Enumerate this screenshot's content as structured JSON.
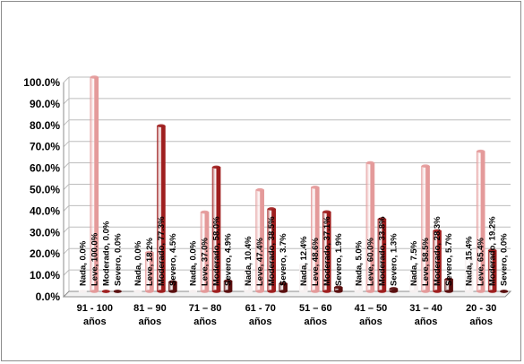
{
  "chart_data": {
    "type": "bar",
    "title": "",
    "xlabel": "",
    "ylabel": "",
    "ylim": [
      0,
      100
    ],
    "yticks": [
      "0.0%",
      "10.0%",
      "20.0%",
      "30.0%",
      "40.0%",
      "50.0%",
      "60.0%",
      "70.0%",
      "80.0%",
      "90.0%",
      "100.0%"
    ],
    "grid": true,
    "legend": "none",
    "categories": [
      [
        "91 - 100",
        "años"
      ],
      [
        "81 – 90",
        "años"
      ],
      [
        "71 – 80",
        "años"
      ],
      [
        "61 - 70",
        "años"
      ],
      [
        "51 – 60",
        "años"
      ],
      [
        "41 – 50",
        "años"
      ],
      [
        "31 – 40",
        "años"
      ],
      [
        "20 - 30",
        "años"
      ]
    ],
    "series": [
      {
        "key": "nada",
        "color": "#f6f0f0",
        "values": [
          0.0,
          0.0,
          0.0,
          10.4,
          12.4,
          5.0,
          7.5,
          15.4
        ],
        "labels": [
          "Nada, 0.0%",
          "Nada, 0.0%",
          "Nada, 0.0%",
          "Nada, 10.4%",
          "Nada, 12.4%",
          "Nada, 5.0%",
          "Nada, 7.5%",
          "Nada, 15.4%"
        ]
      },
      {
        "key": "leve",
        "color": "#e49a9a",
        "values": [
          100.0,
          18.2,
          37.0,
          47.4,
          48.6,
          60.0,
          58.5,
          65.4
        ],
        "labels": [
          "Leve, 100.0%",
          "Leve, 18.2%",
          "Leve, 37.0%",
          "Leve, 47.4%",
          "Leve, 48.6%",
          "Leve, 60.0%",
          "Leve, 58.5%",
          "Leve, 65.4%"
        ]
      },
      {
        "key": "moderado",
        "color": "#9e1e1e",
        "values": [
          0.0,
          77.3,
          58.0,
          38.5,
          37.1,
          33.8,
          28.3,
          19.2
        ],
        "labels": [
          "Moderado, 0.0%",
          "Moderado, 77.3%",
          "Moderado, 58.0%",
          "Moderado, 38.5%",
          "Moderado, 37.1%",
          "Moderado, 33.8%",
          "Moderado, 28.3%",
          "Moderado, 19.2%"
        ]
      },
      {
        "key": "severo",
        "color": "#5a0e0e",
        "values": [
          0.0,
          4.5,
          4.9,
          3.7,
          1.9,
          1.3,
          5.7,
          0.0
        ],
        "labels": [
          "Severo, 0.0%",
          "Severo, 4.5%",
          "Severo, 4.9%",
          "Severo, 3.7%",
          "Severo, 1.9%",
          "Severo, 1.3%",
          "Severo, 5.7%",
          "Severo, 0.0%"
        ]
      }
    ]
  }
}
